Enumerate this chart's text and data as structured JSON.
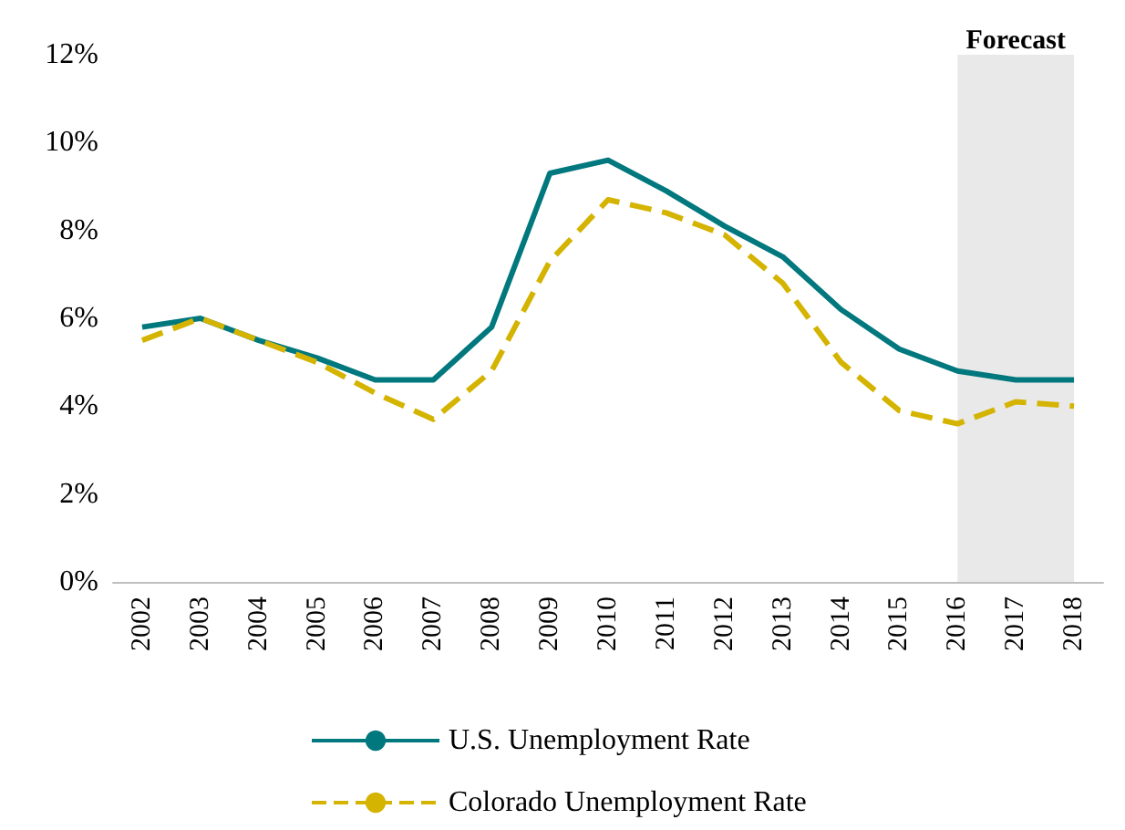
{
  "chart_data": {
    "type": "line",
    "categories": [
      "2002",
      "2003",
      "2004",
      "2005",
      "2006",
      "2007",
      "2008",
      "2009",
      "2010",
      "2011",
      "2012",
      "2013",
      "2014",
      "2015",
      "2016",
      "2017",
      "2018"
    ],
    "series": [
      {
        "name": "U.S. Unemployment Rate",
        "color": "#00787e",
        "line_style": "solid",
        "values": [
          5.8,
          6.0,
          5.5,
          5.1,
          4.6,
          4.6,
          5.8,
          9.3,
          9.6,
          8.9,
          8.1,
          7.4,
          6.2,
          5.3,
          4.8,
          4.6,
          4.6
        ]
      },
      {
        "name": "Colorado Unemployment Rate",
        "color": "#d4b400",
        "line_style": "dashed",
        "values": [
          5.5,
          6.0,
          5.5,
          5.0,
          4.3,
          3.7,
          4.8,
          7.3,
          8.7,
          8.4,
          7.9,
          6.8,
          5.0,
          3.9,
          3.6,
          4.1,
          4.0
        ]
      }
    ],
    "ylim": [
      0,
      12
    ],
    "yticks": [
      {
        "value": 0,
        "label": "0%"
      },
      {
        "value": 2,
        "label": "2%"
      },
      {
        "value": 4,
        "label": "4%"
      },
      {
        "value": 6,
        "label": "6%"
      },
      {
        "value": 8,
        "label": "8%"
      },
      {
        "value": 10,
        "label": "10%"
      },
      {
        "value": 12,
        "label": "12%"
      }
    ],
    "bands": [
      {
        "axis": "x",
        "from": "2016",
        "to": "2018",
        "label": "Forecast",
        "color": "#e9e9e9"
      }
    ],
    "grid": false,
    "legend": "bottom",
    "marker": "none"
  }
}
